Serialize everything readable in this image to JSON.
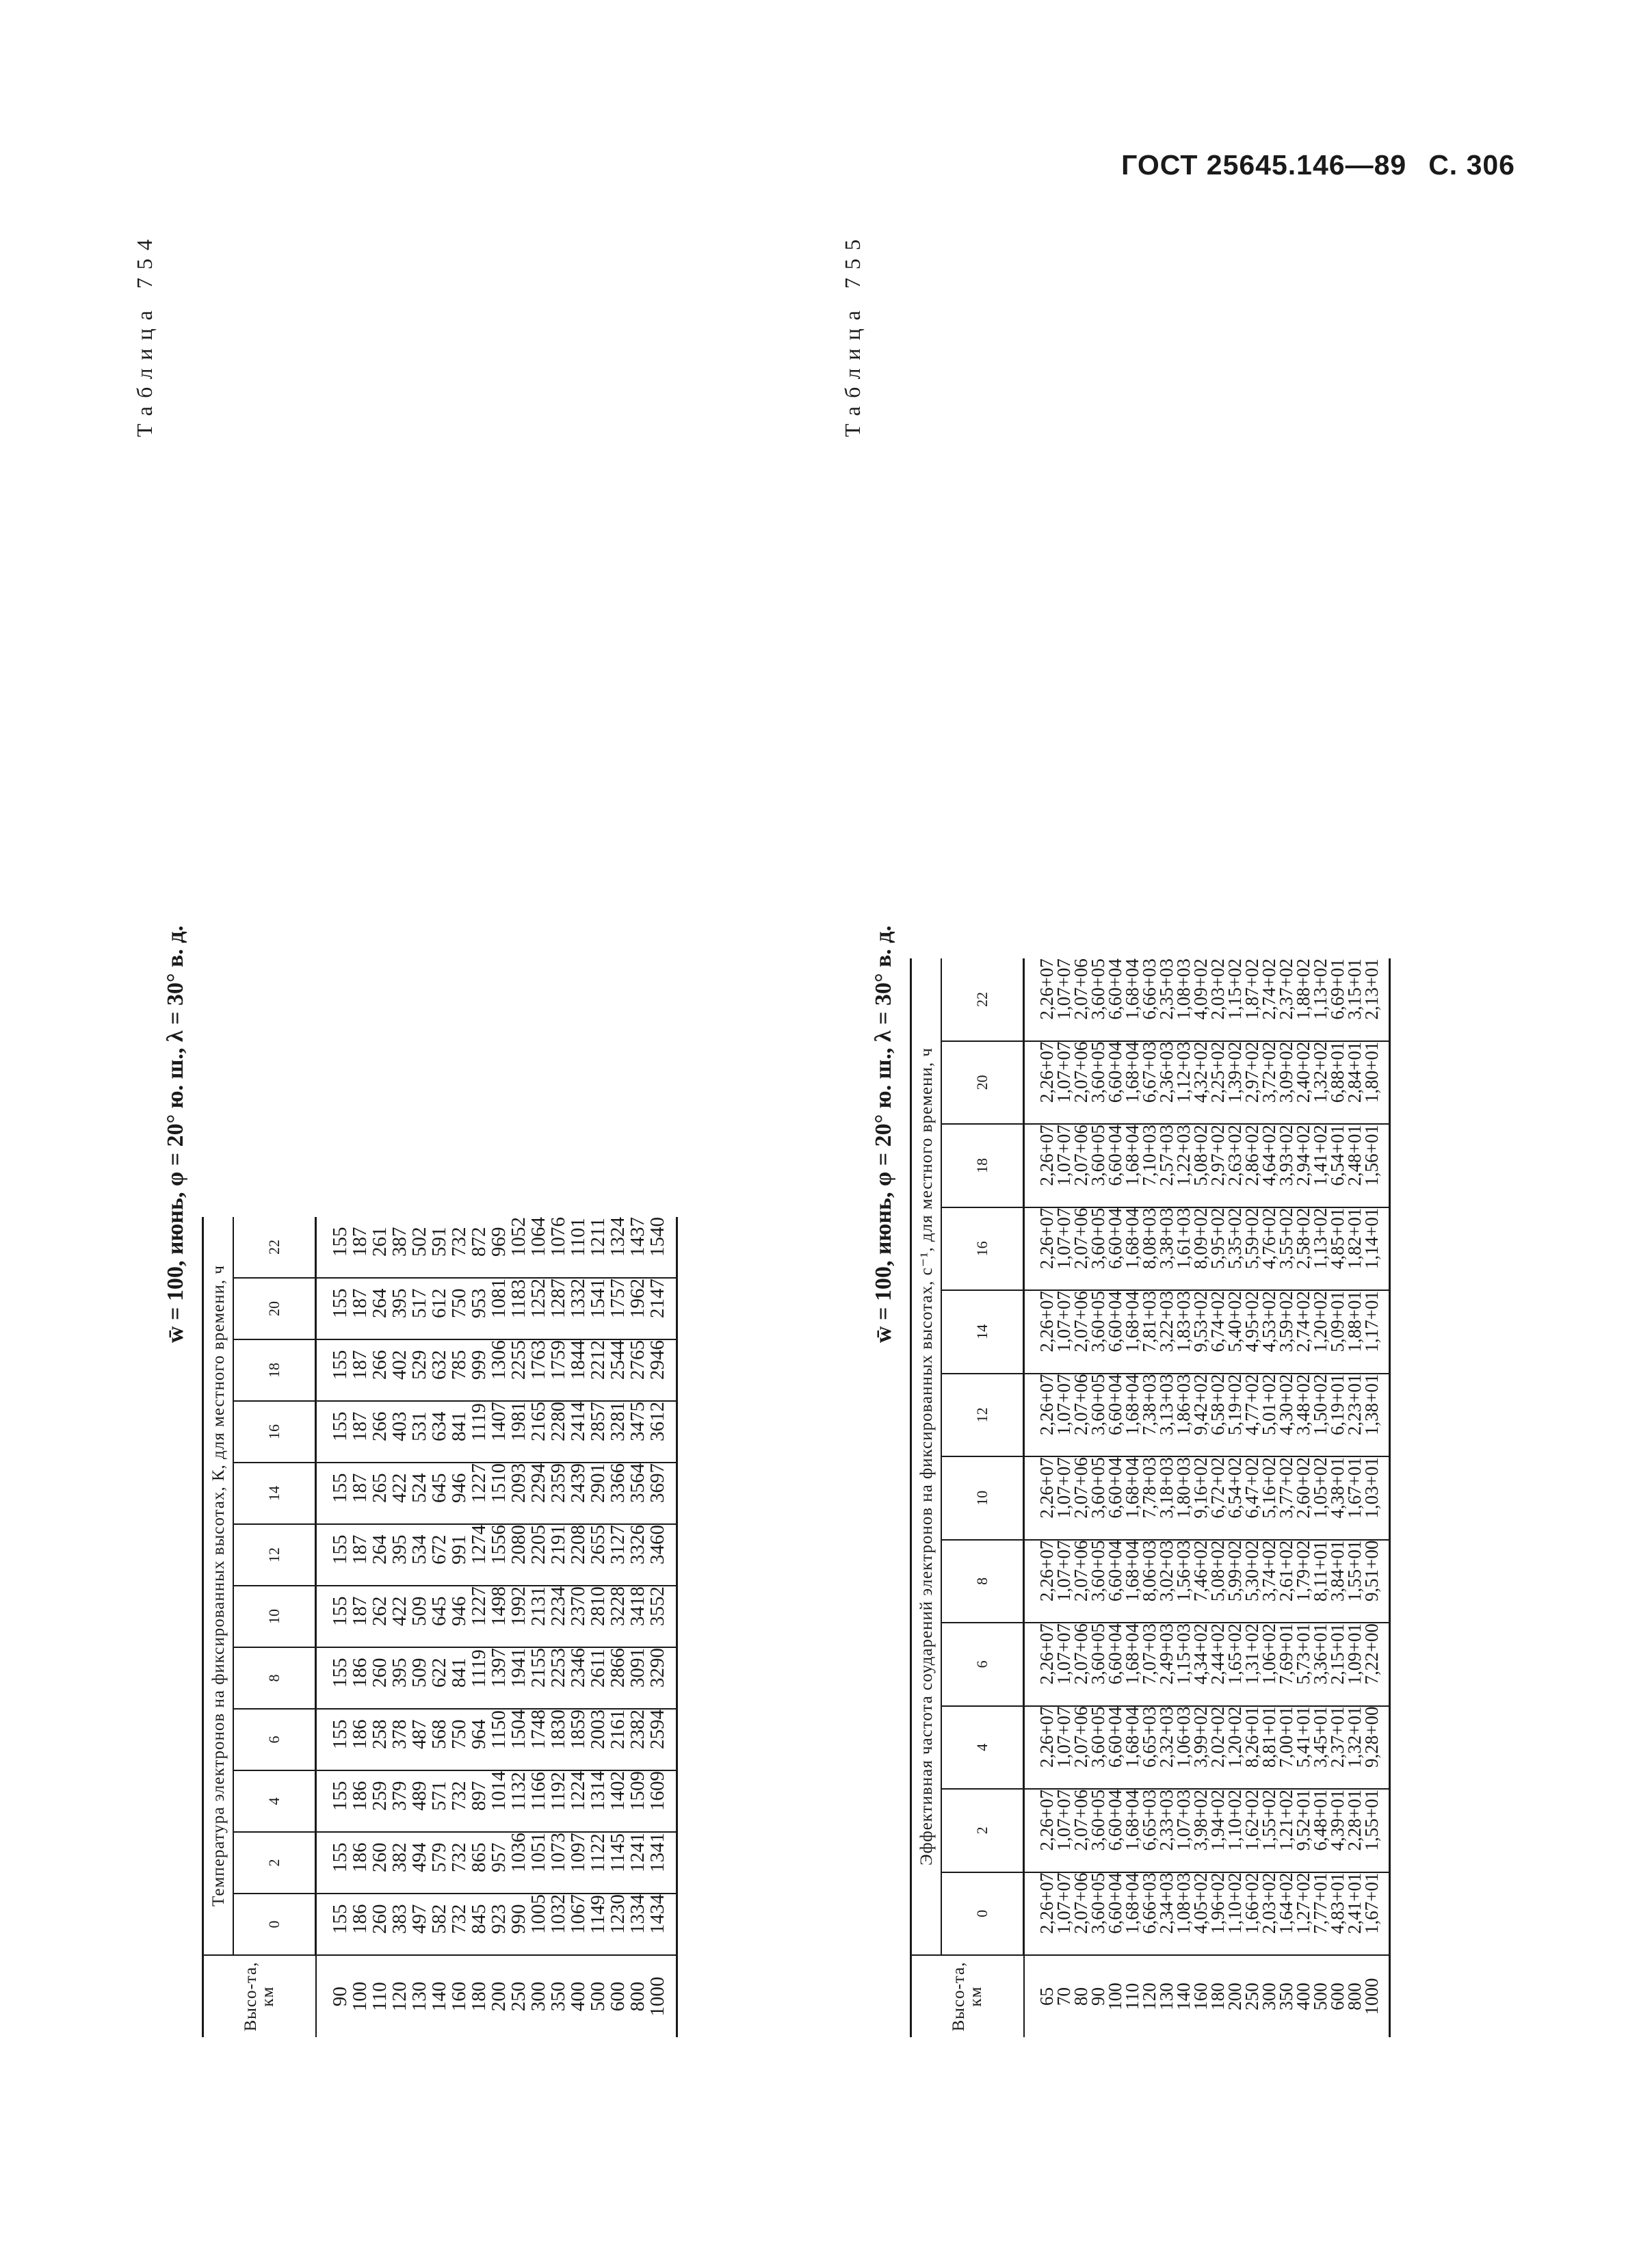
{
  "header": {
    "standard": "ГОСТ 25645.146—89",
    "page": "С. 306"
  },
  "tables": [
    {
      "number_label": "Таблица 754",
      "caption": "w̄ = 100, июнь, φ = 20° ю. ш., λ = 30° в. д.",
      "row_header": "Высо-та, км",
      "title": "Температура электронов на фиксированных высотах, К, для местного времени, ч",
      "hours": [
        "0",
        "2",
        "4",
        "6",
        "8",
        "10",
        "12",
        "14",
        "16",
        "18",
        "20",
        "22"
      ],
      "altitudes": [
        "90",
        "100",
        "110",
        "120",
        "130",
        "140",
        "160",
        "180",
        "200",
        "250",
        "300",
        "350",
        "400",
        "500",
        "600",
        "800",
        "1000"
      ],
      "columns": [
        [
          "155",
          "186",
          "260",
          "383",
          "497",
          "582",
          "732",
          "845",
          "923",
          "990",
          "1005",
          "1032",
          "1067",
          "1149",
          "1230",
          "1334",
          "1434"
        ],
        [
          "155",
          "186",
          "260",
          "382",
          "494",
          "579",
          "732",
          "865",
          "957",
          "1036",
          "1051",
          "1073",
          "1097",
          "1122",
          "1145",
          "1241",
          "1341"
        ],
        [
          "155",
          "186",
          "259",
          "379",
          "489",
          "571",
          "732",
          "897",
          "1014",
          "1132",
          "1166",
          "1192",
          "1224",
          "1314",
          "1402",
          "1509",
          "1609"
        ],
        [
          "155",
          "186",
          "258",
          "378",
          "487",
          "568",
          "750",
          "964",
          "1150",
          "1504",
          "1748",
          "1830",
          "1859",
          "2003",
          "2161",
          "2382",
          "2594"
        ],
        [
          "155",
          "186",
          "260",
          "395",
          "509",
          "622",
          "841",
          "1119",
          "1397",
          "1941",
          "2155",
          "2253",
          "2346",
          "2611",
          "2866",
          "3091",
          "3290"
        ],
        [
          "155",
          "187",
          "262",
          "422",
          "509",
          "645",
          "946",
          "1227",
          "1498",
          "1992",
          "2131",
          "2234",
          "2370",
          "2810",
          "3228",
          "3418",
          "3552"
        ],
        [
          "155",
          "187",
          "264",
          "395",
          "534",
          "672",
          "991",
          "1274",
          "1556",
          "2080",
          "2205",
          "2191",
          "2208",
          "2655",
          "3127",
          "3326",
          "3460"
        ],
        [
          "155",
          "187",
          "265",
          "422",
          "524",
          "645",
          "946",
          "1227",
          "1510",
          "2093",
          "2294",
          "2359",
          "2439",
          "2901",
          "3366",
          "3564",
          "3697"
        ],
        [
          "155",
          "187",
          "266",
          "403",
          "531",
          "634",
          "841",
          "1119",
          "1407",
          "1981",
          "2165",
          "2280",
          "2414",
          "2857",
          "3281",
          "3475",
          "3612"
        ],
        [
          "155",
          "187",
          "266",
          "402",
          "529",
          "632",
          "785",
          "999",
          "1306",
          "2255",
          "1763",
          "1759",
          "1844",
          "2212",
          "2544",
          "2765",
          "2946"
        ],
        [
          "155",
          "187",
          "264",
          "395",
          "517",
          "612",
          "750",
          "953",
          "1081",
          "1183",
          "1252",
          "1287",
          "1332",
          "1541",
          "1757",
          "1962",
          "2147"
        ],
        [
          "155",
          "187",
          "261",
          "387",
          "502",
          "591",
          "732",
          "872",
          "969",
          "1052",
          "1064",
          "1076",
          "1101",
          "1211",
          "1324",
          "1437",
          "1540"
        ]
      ]
    },
    {
      "number_label": "Таблица 755",
      "caption": "w̄ = 100, июнь, φ = 20° ю. ш., λ = 30° в. д.",
      "row_header": "Высо-та, км",
      "title": "Эффективная частота соударений электронов на фиксированных высотах, с⁻¹, для местного времени, ч",
      "hours": [
        "0",
        "2",
        "4",
        "6",
        "8",
        "10",
        "12",
        "14",
        "16",
        "18",
        "20",
        "22"
      ],
      "altitudes": [
        "65",
        "70",
        "80",
        "90",
        "100",
        "110",
        "120",
        "130",
        "140",
        "160",
        "180",
        "200",
        "250",
        "300",
        "350",
        "400",
        "500",
        "600",
        "800",
        "1000"
      ],
      "columns": [
        [
          "2,26+07",
          "1,07+07",
          "2,07+06",
          "3,60+05",
          "6,60+04",
          "1,68+04",
          "6,66+03",
          "2,34+03",
          "1,08+03",
          "4,05+02",
          "1,96+02",
          "1,10+02",
          "1,66+02",
          "2,03+02",
          "1,64+02",
          "1,27+02",
          "7,77+01",
          "4,83+01",
          "2,41+01",
          "1,67+01"
        ],
        [
          "2,26+07",
          "1,07+07",
          "2,07+06",
          "3,60+05",
          "6,60+04",
          "1,68+04",
          "6,65+03",
          "2,33+03",
          "1,07+03",
          "3,98+02",
          "1,94+02",
          "1,10+02",
          "1,62+02",
          "1,55+02",
          "1,21+02",
          "9,52+01",
          "6,48+01",
          "4,39+01",
          "2,28+01",
          "1,55+01"
        ],
        [
          "2,26+07",
          "1,07+07",
          "2,07+06",
          "3,60+05",
          "6,60+04",
          "1,68+04",
          "6,65+03",
          "2,32+03",
          "1,06+03",
          "3,99+02",
          "2,02+02",
          "1,20+02",
          "8,26+01",
          "8,81+01",
          "7,00+01",
          "5,41+01",
          "3,45+01",
          "2,37+01",
          "1,32+01",
          "9,28+00"
        ],
        [
          "2,26+07",
          "1,07+07",
          "2,07+06",
          "3,60+05",
          "6,60+04",
          "1,68+04",
          "7,07+03",
          "2,49+03",
          "1,15+03",
          "4,34+02",
          "2,44+02",
          "1,65+02",
          "1,31+02",
          "1,06+02",
          "7,69+01",
          "5,73+01",
          "3,36+01",
          "2,15+01",
          "1,09+01",
          "7,22+00"
        ],
        [
          "2,26+07",
          "1,07+07",
          "2,07+06",
          "3,60+05",
          "6,60+04",
          "1,68+04",
          "8,06+03",
          "3,02+03",
          "1,56+03",
          "7,46+02",
          "5,08+02",
          "5,99+02",
          "5,30+02",
          "3,74+02",
          "2,61+02",
          "1,79+02",
          "8,11+01",
          "3,84+01",
          "1,55+01",
          "9,51+00"
        ],
        [
          "2,26+07",
          "1,07+07",
          "2,07+06",
          "3,60+05",
          "6,60+04",
          "1,68+04",
          "7,78+03",
          "3,18+03",
          "1,80+03",
          "9,16+02",
          "6,72+02",
          "6,54+02",
          "6,47+02",
          "5,16+02",
          "3,77+02",
          "2,60+02",
          "1,05+02",
          "4,38+01",
          "1,67+01",
          "1,03+01"
        ],
        [
          "2,26+07",
          "1,07+07",
          "2,07+06",
          "3,60+05",
          "6,60+04",
          "1,68+04",
          "7,38+03",
          "3,13+03",
          "1,86+03",
          "9,42+02",
          "6,58+02",
          "5,19+02",
          "4,77+02",
          "5,01+02",
          "4,30+02",
          "3,48+02",
          "1,50+02",
          "6,19+01",
          "2,23+01",
          "1,38+01"
        ],
        [
          "2,26+07",
          "1,07+07",
          "2,07+06",
          "3,60+05",
          "6,60+04",
          "1,68+04",
          "7,81+03",
          "3,22+03",
          "1,83+03",
          "9,53+02",
          "6,74+02",
          "5,40+02",
          "4,95+02",
          "4,53+02",
          "3,59+02",
          "2,74+02",
          "1,20+02",
          "5,09+01",
          "1,88+01",
          "1,17+01"
        ],
        [
          "2,26+07",
          "1,07+07",
          "2,07+06",
          "3,60+05",
          "6,60+04",
          "1,68+04",
          "8,08+03",
          "3,38+03",
          "1,61+03",
          "8,09+02",
          "5,95+02",
          "5,35+02",
          "5,59+02",
          "4,76+02",
          "3,55+02",
          "2,58+02",
          "1,13+02",
          "4,85+01",
          "1,82+01",
          "1,14+01"
        ],
        [
          "2,26+07",
          "1,07+07",
          "2,07+06",
          "3,60+05",
          "6,60+04",
          "1,68+04",
          "7,10+03",
          "2,57+03",
          "1,22+03",
          "5,08+02",
          "2,97+02",
          "2,63+02",
          "2,86+02",
          "4,64+02",
          "3,93+02",
          "2,94+02",
          "1,41+02",
          "6,54+01",
          "2,48+01",
          "1,56+01"
        ],
        [
          "2,26+07",
          "1,07+07",
          "2,07+06",
          "3,60+05",
          "6,60+04",
          "1,68+04",
          "6,67+03",
          "2,36+03",
          "1,12+03",
          "4,32+02",
          "2,25+02",
          "1,39+02",
          "2,97+02",
          "3,72+02",
          "3,09+02",
          "2,40+02",
          "1,32+02",
          "6,88+01",
          "2,84+01",
          "1,80+01"
        ],
        [
          "2,26+07",
          "1,07+07",
          "2,07+06",
          "3,60+05",
          "6,60+04",
          "1,68+04",
          "6,66+03",
          "2,35+03",
          "1,08+03",
          "4,09+02",
          "2,03+02",
          "1,15+02",
          "1,87+02",
          "2,74+02",
          "2,37+02",
          "1,88+02",
          "1,13+02",
          "6,69+01",
          "3,15+01",
          "2,13+01"
        ]
      ]
    }
  ]
}
